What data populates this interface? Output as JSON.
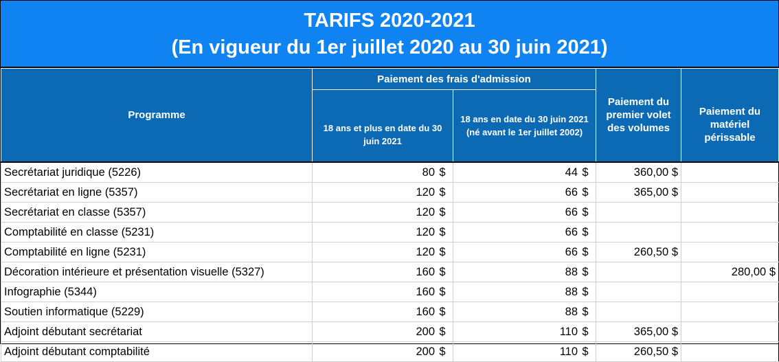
{
  "title": {
    "line1": "TARIFS 2020-2021",
    "line2": "(En vigueur du 1er juillet 2020 au 30 juin 2021)"
  },
  "headers": {
    "programme": "Programme",
    "admission_group": "Paiement des frais d'admission",
    "age18_plus": "18 ans et plus en date du 30 juin 2021",
    "age18_june": "18 ans en date du 30 juin 2021 (né avant le 1er juillet 2002)",
    "volumes": "Paiement du premier volet des volumes",
    "perissable": "Paiement du matériel périssable"
  },
  "currency": "$",
  "rows": [
    {
      "programme": "Secrétariat juridique (5226)",
      "adm18plus": "80",
      "adm18juin": "44",
      "volumes": "360,00 $",
      "perissable": ""
    },
    {
      "programme": "Secrétariat en ligne (5357)",
      "adm18plus": "120",
      "adm18juin": "66",
      "volumes": "365,00 $",
      "perissable": ""
    },
    {
      "programme": "Secrétariat en classe (5357)",
      "adm18plus": "120",
      "adm18juin": "66",
      "volumes": "",
      "perissable": ""
    },
    {
      "programme": "Comptabilité en classe (5231)",
      "adm18plus": "120",
      "adm18juin": "66",
      "volumes": "",
      "perissable": ""
    },
    {
      "programme": "Comptabilité en ligne (5231)",
      "adm18plus": "120",
      "adm18juin": "66",
      "volumes": "260,50 $",
      "perissable": ""
    },
    {
      "programme": "Décoration intérieure et présentation visuelle (5327)",
      "adm18plus": "160",
      "adm18juin": "88",
      "volumes": "",
      "perissable": "280,00  $"
    },
    {
      "programme": "Infographie (5344)",
      "adm18plus": "160",
      "adm18juin": "88",
      "volumes": "",
      "perissable": ""
    },
    {
      "programme": "Soutien informatique (5229)",
      "adm18plus": "160",
      "adm18juin": "88",
      "volumes": "",
      "perissable": ""
    },
    {
      "programme": "Adjoint débutant secrétariat",
      "adm18plus": "200",
      "adm18juin": "110",
      "volumes": "365,00 $",
      "perissable": ""
    },
    {
      "programme": "Adjoint débutant comptabilité",
      "adm18plus": "200",
      "adm18juin": "110",
      "volumes": "260,50 $",
      "perissable": ""
    }
  ]
}
